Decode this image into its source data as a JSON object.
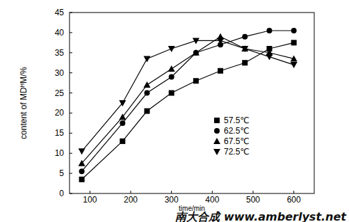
{
  "chart_data": {
    "type": "line",
    "y_label": "content of MDᴴM/%",
    "x_label": "time/min",
    "annotations": [
      "南大合成 www.amberlyst.net"
    ],
    "x": [
      80,
      180,
      240,
      300,
      360,
      420,
      480,
      540,
      600
    ],
    "xlim": [
      50,
      650
    ],
    "xticks": [
      100,
      200,
      300,
      400,
      500,
      600
    ],
    "ylim": [
      0,
      45
    ],
    "yticks": [
      0,
      5,
      10,
      15,
      20,
      25,
      30,
      35,
      40,
      45
    ],
    "grid": false,
    "legend": "right",
    "series": [
      {
        "name": "57.5℃",
        "color": "#000000",
        "marker": "square",
        "line_style": "solid",
        "values": [
          3.5,
          13,
          20.5,
          25,
          28,
          30.5,
          32.5,
          36,
          37.5
        ]
      },
      {
        "name": "62.5℃",
        "color": "#000000",
        "marker": "circle",
        "line_style": "solid",
        "values": [
          5.5,
          17.5,
          25,
          29,
          35,
          37,
          39,
          40.5,
          40.5
        ]
      },
      {
        "name": "67.5℃",
        "color": "#000000",
        "marker": "triangle",
        "line_style": "solid",
        "values": [
          7.5,
          19,
          27,
          31,
          35,
          39,
          36,
          35,
          33.5
        ]
      },
      {
        "name": "72.5℃",
        "color": "#000000",
        "marker": "triangle-down",
        "line_style": "solid",
        "values": [
          10.5,
          22.5,
          33.5,
          36,
          38,
          38,
          36,
          34,
          32
        ]
      }
    ]
  }
}
